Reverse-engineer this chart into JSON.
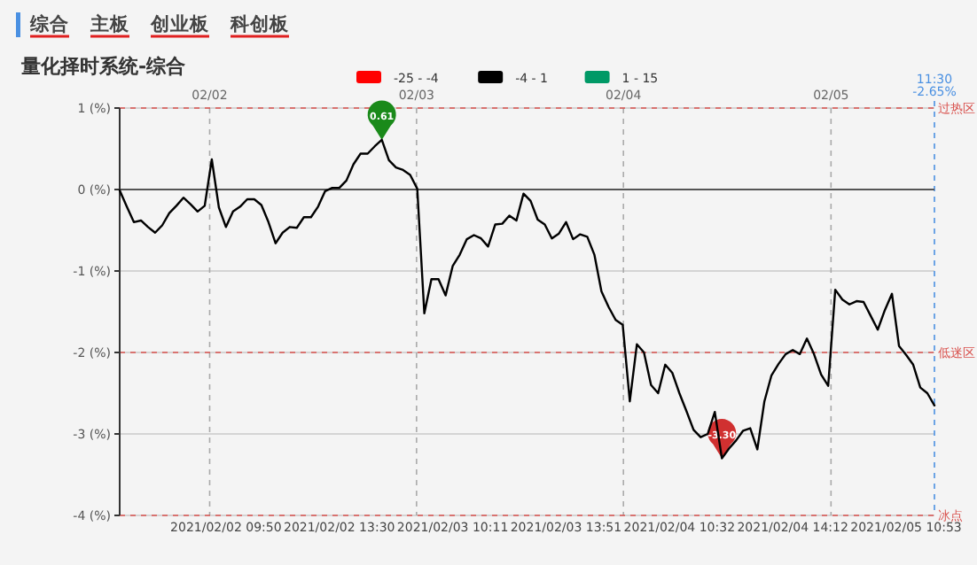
{
  "chart_data": {
    "type": "line",
    "title": "量化择时系统-综合",
    "annotations": [
      "综合",
      "主板",
      "创业板",
      "科创板",
      "11:30",
      "-2.65%",
      "02/02",
      "02/03",
      "02/04",
      "02/05",
      {
        "text": "0.61",
        "y": 0.61
      },
      {
        "text": "-3.30",
        "y": -3.3
      }
    ],
    "categories": [
      null,
      null,
      null,
      null,
      null,
      null,
      null,
      null,
      null,
      null,
      null,
      null,
      null,
      null,
      null,
      "2021/02/02 09:50",
      null,
      null,
      null,
      null,
      null,
      null,
      null,
      null,
      null,
      null,
      null,
      null,
      null,
      null,
      null,
      "2021/02/02 13:30",
      null,
      null,
      null,
      null,
      null,
      null,
      null,
      null,
      null,
      null,
      null,
      null,
      null,
      null,
      null,
      "2021/02/03 10:11",
      null,
      null,
      null,
      null,
      null,
      null,
      null,
      null,
      null,
      null,
      null,
      null,
      null,
      null,
      null,
      "2021/02/03 13:51",
      null,
      null,
      null,
      null,
      null,
      null,
      null,
      null,
      null,
      null,
      null,
      null,
      null,
      null,
      null,
      "2021/02/04 10:32",
      null,
      null,
      null,
      null,
      null,
      null,
      null,
      null,
      null,
      null,
      null,
      null,
      null,
      null,
      null,
      "2021/02/04 14:12",
      null,
      null,
      null,
      null,
      null,
      null,
      null,
      null,
      null,
      null,
      null,
      null,
      null,
      null,
      null,
      "2021/02/05 10:53",
      null,
      null,
      null,
      null
    ],
    "ylim": [
      -4,
      1
    ],
    "yticks": [
      {
        "value": 1,
        "label": "1 (%)"
      },
      {
        "value": 0,
        "label": "0 (%)"
      },
      {
        "value": -1,
        "label": "-1 (%)"
      },
      {
        "value": -2,
        "label": "-2 (%)"
      },
      {
        "value": -3,
        "label": "-3 (%)"
      },
      {
        "value": -4,
        "label": "-4 (%)"
      }
    ],
    "grid": "y",
    "legend": "top",
    "line_style": "solid",
    "ref_lines": [
      {
        "axis": "y",
        "value": 1,
        "label": "过热区",
        "color": "#d9534f",
        "line_style": "dashed"
      },
      {
        "axis": "y",
        "value": 0,
        "color": "#555555",
        "line_style": "solid"
      },
      {
        "axis": "y",
        "value": -2,
        "label": "低迷区",
        "color": "#d9534f",
        "line_style": "dashed"
      },
      {
        "axis": "y",
        "value": -4,
        "label": "冰点",
        "color": "#d9534f",
        "line_style": "dashed"
      }
    ],
    "series": [
      {
        "name": "-25 - -4",
        "color": "#ff0000",
        "values": [
          null,
          null,
          null,
          null,
          null,
          null,
          null,
          null,
          null,
          null,
          null,
          null,
          null,
          null,
          null,
          null,
          null,
          null,
          null,
          null,
          null,
          null,
          null,
          null,
          null,
          null,
          null,
          null,
          null,
          null,
          null,
          null,
          null,
          null,
          null,
          null,
          null,
          null,
          null,
          null,
          null,
          null,
          null,
          null,
          null,
          null,
          null,
          null,
          null,
          null,
          null,
          null,
          null,
          null,
          null,
          null,
          null,
          null,
          null,
          null,
          null,
          null,
          null,
          null,
          null,
          null,
          null,
          null,
          null,
          null,
          null,
          null,
          null,
          null,
          null,
          null,
          null,
          null,
          null,
          null,
          null,
          null,
          null,
          null,
          null,
          null,
          null,
          null,
          null,
          null,
          null,
          null,
          null,
          null,
          null,
          null,
          null,
          null,
          null,
          null,
          null,
          null,
          null,
          null,
          null,
          null,
          null,
          null,
          null,
          null,
          null,
          null,
          null,
          null,
          null,
          null
        ]
      },
      {
        "name": "-4 - 1",
        "color": "#000000",
        "values": [
          -0.01,
          -0.21,
          -0.4,
          -0.38,
          -0.46,
          -0.53,
          -0.44,
          -0.29,
          -0.2,
          -0.1,
          -0.18,
          -0.27,
          -0.2,
          0.37,
          -0.22,
          -0.46,
          -0.27,
          -0.21,
          -0.12,
          -0.12,
          -0.19,
          -0.4,
          -0.66,
          -0.53,
          -0.46,
          -0.47,
          -0.34,
          -0.34,
          -0.21,
          -0.02,
          0.02,
          0.02,
          0.11,
          0.31,
          0.44,
          0.44,
          0.53,
          0.61,
          0.36,
          0.27,
          0.24,
          0.18,
          0.01,
          -1.52,
          -1.1,
          -1.1,
          -1.3,
          -0.94,
          -0.8,
          -0.61,
          -0.56,
          -0.6,
          -0.7,
          -0.43,
          -0.42,
          -0.32,
          -0.38,
          -0.05,
          -0.14,
          -0.37,
          -0.43,
          -0.6,
          -0.54,
          -0.4,
          -0.61,
          -0.55,
          -0.58,
          -0.8,
          -1.25,
          -1.44,
          -1.6,
          -1.66,
          -2.6,
          -1.9,
          -2.0,
          -2.4,
          -2.5,
          -2.15,
          -2.25,
          -2.5,
          -2.72,
          -2.95,
          -3.04,
          -3.0,
          -2.73,
          -3.3,
          -3.18,
          -3.08,
          -2.96,
          -2.93,
          -3.19,
          -2.6,
          -2.28,
          -2.14,
          -2.02,
          -1.97,
          -2.02,
          -1.83,
          -2.02,
          -2.27,
          -2.41,
          -1.23,
          -1.35,
          -1.41,
          -1.37,
          -1.38,
          -1.55,
          -1.72,
          -1.48,
          -1.28,
          -1.92,
          -2.03,
          -2.15,
          -2.43,
          -2.5,
          -2.65
        ]
      },
      {
        "name": "1 - 15",
        "color": "#009966",
        "values": [
          null,
          null,
          null,
          null,
          null,
          null,
          null,
          null,
          null,
          null,
          null,
          null,
          null,
          null,
          null,
          null,
          null,
          null,
          null,
          null,
          null,
          null,
          null,
          null,
          null,
          null,
          null,
          null,
          null,
          null,
          null,
          null,
          null,
          null,
          null,
          null,
          null,
          null,
          null,
          null,
          null,
          null,
          null,
          null,
          null,
          null,
          null,
          null,
          null,
          null,
          null,
          null,
          null,
          null,
          null,
          null,
          null,
          null,
          null,
          null,
          null,
          null,
          null,
          null,
          null,
          null,
          null,
          null,
          null,
          null,
          null,
          null,
          null,
          null,
          null,
          null,
          null,
          null,
          null,
          null,
          null,
          null,
          null,
          null,
          null,
          null,
          null,
          null,
          null,
          null,
          null,
          null,
          null,
          null,
          null,
          null,
          null,
          null,
          null,
          null,
          null,
          null,
          null,
          null,
          null,
          null,
          null,
          null,
          null,
          null,
          null,
          null,
          null,
          null,
          null,
          null
        ]
      }
    ]
  }
}
